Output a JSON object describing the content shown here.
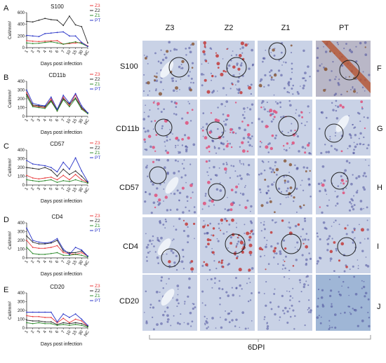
{
  "chart_data": [
    {
      "panel": "A",
      "type": "line",
      "title": "S100",
      "ylabel": "Cell/mm²",
      "xlabel": "Days post infection",
      "categories": [
        "1",
        "2",
        "3",
        "4",
        "5",
        "6",
        "7",
        "10",
        "15",
        "30",
        "NC"
      ],
      "ylim": [
        0,
        600
      ],
      "yticks": [
        0,
        200,
        400,
        600
      ],
      "series": [
        {
          "name": "Z3",
          "color": "#e8393a",
          "values": [
            120,
            110,
            105,
            110,
            115,
            120,
            60,
            70,
            80,
            90,
            30
          ]
        },
        {
          "name": "Z2",
          "color": "#2b2b2b",
          "values": [
            450,
            440,
            470,
            500,
            480,
            470,
            380,
            540,
            390,
            360,
            80
          ]
        },
        {
          "name": "Z1",
          "color": "#2e8b2e",
          "values": [
            80,
            70,
            75,
            90,
            100,
            80,
            60,
            80,
            100,
            70,
            20
          ]
        },
        {
          "name": "PT",
          "color": "#2a35c8",
          "values": [
            210,
            200,
            190,
            240,
            250,
            260,
            270,
            200,
            200,
            90,
            20
          ]
        }
      ]
    },
    {
      "panel": "B",
      "type": "line",
      "title": "CD11b",
      "ylabel": "Cell/mm²",
      "xlabel": "Days post infection",
      "categories": [
        "1",
        "2",
        "3",
        "4",
        "5",
        "6",
        "7",
        "10",
        "15",
        "30",
        "NC"
      ],
      "ylim": [
        0,
        400
      ],
      "yticks": [
        0,
        100,
        200,
        300,
        400
      ],
      "series": [
        {
          "name": "Z3",
          "color": "#e8393a",
          "values": [
            270,
            120,
            110,
            100,
            200,
            60,
            220,
            120,
            250,
            90,
            40
          ]
        },
        {
          "name": "Z2",
          "color": "#2b2b2b",
          "values": [
            250,
            130,
            120,
            110,
            180,
            70,
            200,
            140,
            210,
            100,
            40
          ]
        },
        {
          "name": "Z1",
          "color": "#2e8b2e",
          "values": [
            230,
            110,
            100,
            90,
            170,
            60,
            190,
            110,
            200,
            80,
            30
          ]
        },
        {
          "name": "PT",
          "color": "#2a35c8",
          "values": [
            300,
            150,
            130,
            120,
            220,
            80,
            240,
            150,
            260,
            120,
            40
          ]
        }
      ]
    },
    {
      "panel": "C",
      "type": "line",
      "title": "CD57",
      "ylabel": "Cell/mm²",
      "xlabel": "Days post infection",
      "categories": [
        "1",
        "2",
        "3",
        "4",
        "5",
        "6",
        "7",
        "10",
        "15",
        "30",
        "NC"
      ],
      "ylim": [
        0,
        400
      ],
      "yticks": [
        0,
        100,
        200,
        300,
        400
      ],
      "series": [
        {
          "name": "Z3",
          "color": "#e8393a",
          "values": [
            110,
            80,
            70,
            80,
            90,
            60,
            110,
            60,
            120,
            60,
            30
          ]
        },
        {
          "name": "Z2",
          "color": "#2b2b2b",
          "values": [
            200,
            190,
            180,
            200,
            170,
            100,
            180,
            120,
            160,
            100,
            30
          ]
        },
        {
          "name": "Z1",
          "color": "#2e8b2e",
          "values": [
            60,
            50,
            40,
            50,
            60,
            30,
            50,
            40,
            60,
            40,
            20
          ]
        },
        {
          "name": "PT",
          "color": "#2a35c8",
          "values": [
            280,
            240,
            230,
            220,
            200,
            150,
            260,
            180,
            310,
            160,
            40
          ]
        }
      ]
    },
    {
      "panel": "D",
      "type": "line",
      "title": "CD4",
      "ylabel": "Cell/mm²",
      "xlabel": "Days post infection",
      "categories": [
        "1",
        "2",
        "3",
        "4",
        "5",
        "6",
        "7",
        "10",
        "15",
        "30",
        "NC"
      ],
      "ylim": [
        0,
        400
      ],
      "yticks": [
        0,
        100,
        200,
        300,
        400
      ],
      "series": [
        {
          "name": "Z3",
          "color": "#e8393a",
          "values": [
            200,
            120,
            110,
            110,
            120,
            140,
            60,
            50,
            40,
            60,
            20
          ]
        },
        {
          "name": "Z2",
          "color": "#2b2b2b",
          "values": [
            250,
            180,
            160,
            160,
            170,
            200,
            80,
            60,
            60,
            80,
            20
          ]
        },
        {
          "name": "Z1",
          "color": "#2e8b2e",
          "values": [
            120,
            50,
            40,
            40,
            50,
            60,
            30,
            30,
            40,
            30,
            10
          ]
        },
        {
          "name": "PT",
          "color": "#2a35c8",
          "values": [
            340,
            200,
            180,
            170,
            180,
            220,
            100,
            40,
            120,
            90,
            20
          ]
        }
      ]
    },
    {
      "panel": "E",
      "type": "line",
      "title": "CD20",
      "ylabel": "Cell/mm²",
      "xlabel": "Days post infection",
      "categories": [
        "1",
        "2",
        "3",
        "4",
        "5",
        "6",
        "7",
        "10",
        "15",
        "30",
        "NC"
      ],
      "ylim": [
        0,
        400
      ],
      "yticks": [
        0,
        100,
        200,
        300,
        400
      ],
      "series": [
        {
          "name": "Z3",
          "color": "#e8393a",
          "values": [
            140,
            130,
            130,
            120,
            120,
            60,
            110,
            60,
            100,
            80,
            20
          ]
        },
        {
          "name": "Z2",
          "color": "#2b2b2b",
          "values": [
            90,
            80,
            80,
            70,
            70,
            40,
            60,
            50,
            60,
            50,
            20
          ]
        },
        {
          "name": "Z1",
          "color": "#2e8b2e",
          "values": [
            60,
            50,
            60,
            50,
            50,
            30,
            40,
            30,
            40,
            30,
            10
          ]
        },
        {
          "name": "PT",
          "color": "#2a35c8",
          "values": [
            180,
            180,
            180,
            180,
            180,
            70,
            160,
            120,
            160,
            100,
            30
          ]
        }
      ]
    }
  ],
  "panel_letters": {
    "A": "A",
    "B": "B",
    "C": "C",
    "D": "D",
    "E": "E",
    "F": "F",
    "G": "G",
    "H": "H",
    "I": "I",
    "J": "J"
  },
  "micrograph_grid": {
    "columns": [
      "Z3",
      "Z2",
      "Z1",
      "PT"
    ],
    "rows": [
      "S100",
      "CD11b",
      "CD57",
      "CD4",
      "CD20"
    ],
    "footer": "6DPI"
  },
  "colors": {
    "z3": "#e8393a",
    "z2": "#2b2b2b",
    "z1": "#2e8b2e",
    "pt": "#2a35c8",
    "tissue_bg": "#c9d2e6",
    "nuclei": "#4a4f9a",
    "stain_red": "#c23b3a",
    "stain_pink": "#e0507a",
    "stain_brown": "#8a5a3b"
  }
}
